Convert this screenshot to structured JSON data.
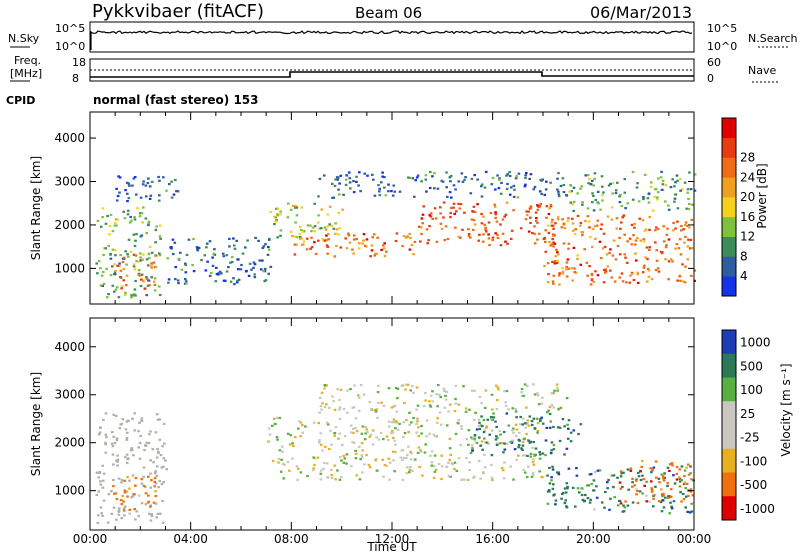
{
  "header": {
    "station": "Pykkvibaer (fitACF)",
    "beam": "Beam 06",
    "date": "06/Mar/2013"
  },
  "panels": {
    "nsky_label": "N.Sky",
    "nsky_ticks": [
      "10^5",
      "10^0"
    ],
    "nsearch_label": "N.Search",
    "freq_label_1": "Freq.",
    "freq_label_2": "[MHz]",
    "freq_ticks": [
      "18",
      "8"
    ],
    "nave_label": "Nave",
    "nave_ticks": [
      "60",
      "0"
    ],
    "cpid_label": "CPID",
    "cpid_value": "normal (fast stereo)  153"
  },
  "chart_data": [
    {
      "type": "heatmap",
      "name": "power",
      "ylabel": "Slant Range [km]",
      "xlabel": "",
      "xlim": [
        "00:00",
        "24:00"
      ],
      "ylim": [
        180,
        4600
      ],
      "yticks": [
        1000,
        2000,
        3000,
        4000
      ],
      "colorbar": {
        "label": "Power [dB]",
        "ticks": [
          "4",
          "8",
          "12",
          "16",
          "20",
          "24",
          "28"
        ],
        "colors": [
          "#1432e6",
          "#2e5ca0",
          "#3a8c5a",
          "#7cc23c",
          "#f5d11c",
          "#f0a020",
          "#f06c14",
          "#e83c10",
          "#e00000"
        ]
      },
      "regions": [
        {
          "t0": 0.2,
          "t1": 2.8,
          "r0": 300,
          "r1": 2400,
          "dB": 12
        },
        {
          "t0": 0.8,
          "t1": 2.6,
          "r0": 500,
          "r1": 1300,
          "dB": 24
        },
        {
          "t0": 1.0,
          "t1": 3.5,
          "r0": 2500,
          "r1": 3150,
          "dB": 6
        },
        {
          "t0": 3.0,
          "t1": 7.2,
          "r0": 600,
          "r1": 1700,
          "dB": 6
        },
        {
          "t0": 7.0,
          "t1": 10.0,
          "r0": 1600,
          "r1": 2500,
          "dB": 16
        },
        {
          "t0": 8.0,
          "t1": 13.0,
          "r0": 1250,
          "r1": 1800,
          "dB": 26
        },
        {
          "t0": 9.0,
          "t1": 19.0,
          "r0": 2600,
          "r1": 3200,
          "dB": 6
        },
        {
          "t0": 13.0,
          "t1": 18.5,
          "r0": 1500,
          "r1": 2500,
          "dB": 28
        },
        {
          "t0": 18.0,
          "t1": 24.0,
          "r0": 600,
          "r1": 2200,
          "dB": 26
        },
        {
          "t0": 19.0,
          "t1": 24.0,
          "r0": 2300,
          "r1": 3200,
          "dB": 12
        }
      ]
    },
    {
      "type": "heatmap",
      "name": "velocity",
      "ylabel": "Slant Range [km]",
      "xlabel": "Time UT",
      "xlim": [
        "00:00",
        "24:00"
      ],
      "ylim": [
        180,
        4600
      ],
      "xticks": [
        "00:00",
        "04:00",
        "08:00",
        "12:00",
        "16:00",
        "20:00",
        "00:00"
      ],
      "yticks": [
        1000,
        2000,
        3000,
        4000
      ],
      "colorbar": {
        "label": "Velocity [m s⁻¹]",
        "ticks": [
          "1000",
          "500",
          "100",
          "25",
          "-25",
          "-100",
          "-500",
          "-1000"
        ],
        "colors": [
          "#1e3cb4",
          "#2a7a58",
          "#58b040",
          "#c8c8c0",
          "#c8c8c0",
          "#e8b020",
          "#f07010",
          "#e00000"
        ]
      },
      "regions": [
        {
          "t0": 0.2,
          "t1": 3.0,
          "r0": 300,
          "r1": 2600,
          "v": "ground"
        },
        {
          "t0": 0.8,
          "t1": 2.6,
          "r0": 500,
          "r1": 1300,
          "v": -200
        },
        {
          "t0": 7.0,
          "t1": 18.0,
          "r0": 1200,
          "r1": 2500,
          "v": 0
        },
        {
          "t0": 9.0,
          "t1": 19.0,
          "r0": 2600,
          "r1": 3200,
          "v": 0
        },
        {
          "t0": 15.0,
          "t1": 19.5,
          "r0": 1700,
          "r1": 2600,
          "v": 300
        },
        {
          "t0": 18.0,
          "t1": 24.0,
          "r0": 500,
          "r1": 1500,
          "v": 300
        },
        {
          "t0": 21.0,
          "t1": 24.0,
          "r0": 700,
          "r1": 1600,
          "v": -300
        }
      ]
    }
  ]
}
